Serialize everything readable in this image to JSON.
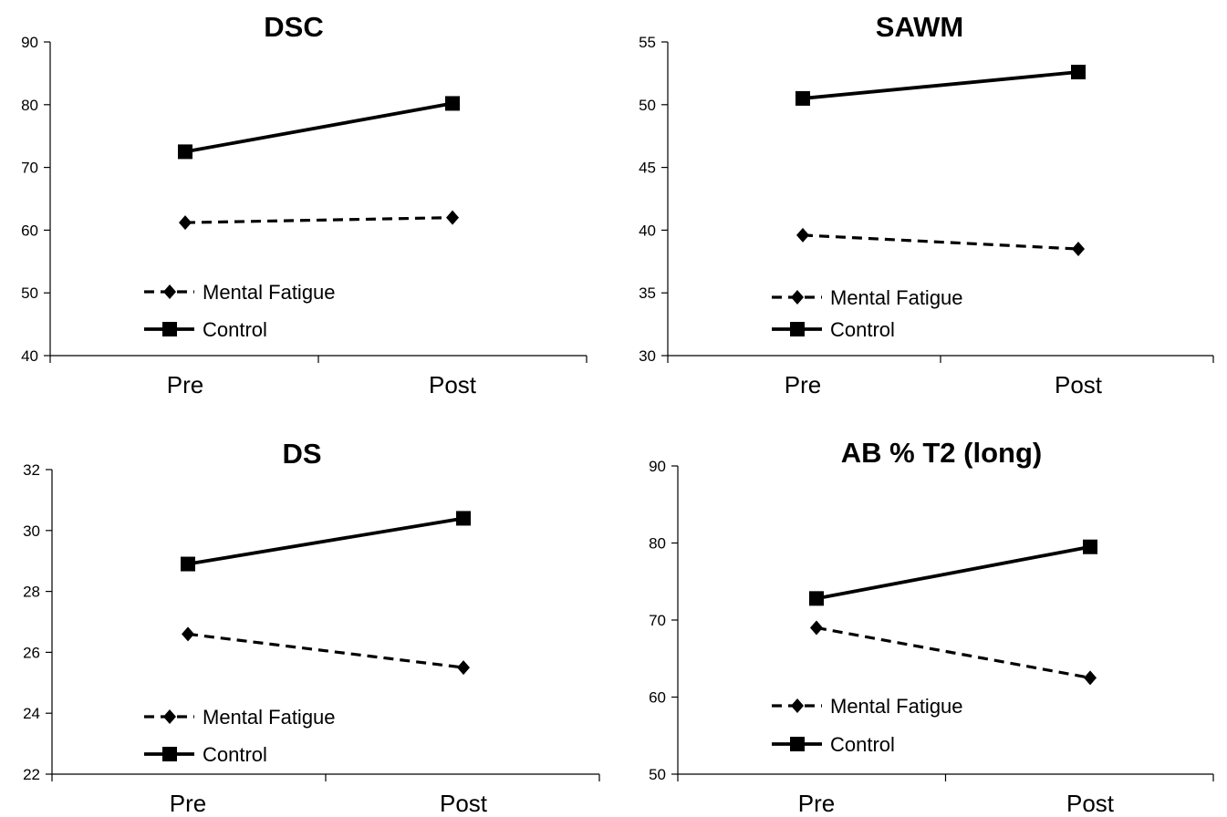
{
  "chart_data": [
    {
      "type": "line",
      "title": "DSC",
      "categories": [
        "Pre",
        "Post"
      ],
      "ylim": [
        40,
        90
      ],
      "yticks": [
        40,
        50,
        60,
        70,
        80,
        90
      ],
      "legend_position": "bottom-left",
      "grid": false,
      "series": [
        {
          "name": "Mental Fatigue",
          "style": "dashed",
          "marker": "diamond",
          "values": [
            61.2,
            62.0
          ]
        },
        {
          "name": "Control",
          "style": "solid",
          "marker": "square",
          "values": [
            72.5,
            80.2
          ]
        }
      ]
    },
    {
      "type": "line",
      "title": "SAWM",
      "categories": [
        "Pre",
        "Post"
      ],
      "ylim": [
        30,
        55
      ],
      "yticks": [
        30,
        35,
        40,
        45,
        50,
        55
      ],
      "legend_position": "bottom-left",
      "grid": false,
      "series": [
        {
          "name": "Mental Fatigue",
          "style": "dashed",
          "marker": "diamond",
          "values": [
            39.6,
            38.5
          ]
        },
        {
          "name": "Control",
          "style": "solid",
          "marker": "square",
          "values": [
            50.5,
            52.6
          ]
        }
      ]
    },
    {
      "type": "line",
      "title": "DS",
      "categories": [
        "Pre",
        "Post"
      ],
      "ylim": [
        22,
        32
      ],
      "yticks": [
        22,
        24,
        26,
        28,
        30,
        32
      ],
      "legend_position": "bottom-left",
      "grid": false,
      "series": [
        {
          "name": "Mental Fatigue",
          "style": "dashed",
          "marker": "diamond",
          "values": [
            26.6,
            25.5
          ]
        },
        {
          "name": "Control",
          "style": "solid",
          "marker": "square",
          "values": [
            28.9,
            30.4
          ]
        }
      ]
    },
    {
      "type": "line",
      "title": "AB % T2 (long)",
      "categories": [
        "Pre",
        "Post"
      ],
      "ylim": [
        50,
        90
      ],
      "yticks": [
        50,
        60,
        70,
        80,
        90
      ],
      "legend_position": "bottom-left",
      "grid": false,
      "series": [
        {
          "name": "Mental Fatigue",
          "style": "dashed",
          "marker": "diamond",
          "values": [
            69.0,
            62.5
          ]
        },
        {
          "name": "Control",
          "style": "solid",
          "marker": "square",
          "values": [
            72.8,
            79.5
          ]
        }
      ]
    }
  ]
}
